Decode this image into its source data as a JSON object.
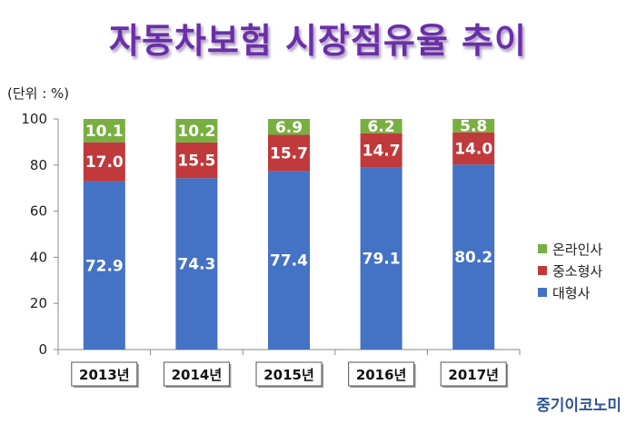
{
  "chart_data": {
    "type": "bar",
    "stacked": true,
    "title": "자동차보험 시장점유율 추이",
    "unit_label": "(단위 : %)",
    "categories": [
      "2013년",
      "2014년",
      "2015년",
      "2016년",
      "2017년"
    ],
    "series": [
      {
        "name": "대형사",
        "values": [
          72.9,
          74.3,
          77.4,
          79.1,
          80.2
        ],
        "color": "#4472c4"
      },
      {
        "name": "중소형사",
        "values": [
          17.0,
          15.5,
          15.7,
          14.7,
          14.0
        ],
        "color": "#c0393b"
      },
      {
        "name": "온라인사",
        "values": [
          10.1,
          10.2,
          6.9,
          6.2,
          5.8
        ],
        "color": "#77b041"
      }
    ],
    "ylim": [
      0,
      100
    ],
    "yticks": [
      0,
      20,
      40,
      60,
      80,
      100
    ],
    "legend_position": "right",
    "grid": false
  },
  "source": "중기이코노미"
}
